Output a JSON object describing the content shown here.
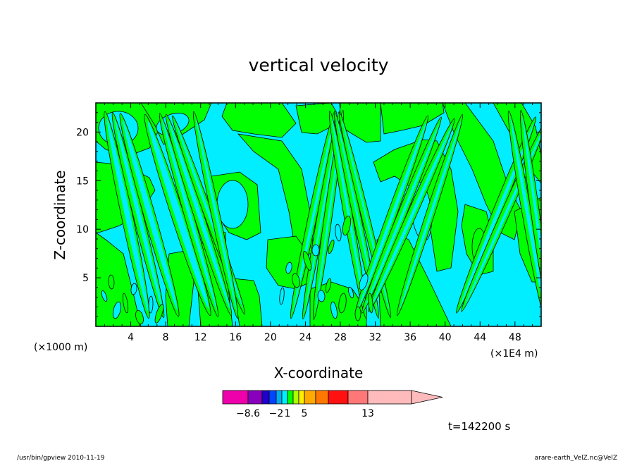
{
  "chart_data": {
    "type": "heatmap",
    "title": "vertical velocity",
    "xlabel": "X-coordinate",
    "ylabel": "Z-coordinate",
    "x_unit_left": "(×1000 m)",
    "x_unit_right": "(×1E4 m)",
    "xlim": [
      0,
      51
    ],
    "ylim": [
      0,
      23
    ],
    "x_ticks": [
      4,
      8,
      12,
      16,
      20,
      24,
      28,
      32,
      36,
      40,
      44,
      48
    ],
    "y_ticks": [
      5,
      10,
      15,
      20
    ],
    "fill_levels": [
      {
        "color": "#ee00aa"
      },
      {
        "color": "#8800bb"
      },
      {
        "color": "#2200cc"
      },
      {
        "color": "#0044ff"
      },
      {
        "color": "#00aaee"
      },
      {
        "color": "#00eeff"
      },
      {
        "color": "#00ff00"
      },
      {
        "color": "#aaff00"
      },
      {
        "color": "#ffee00"
      },
      {
        "color": "#ffaa00"
      },
      {
        "color": "#ff7700"
      },
      {
        "color": "#ff1111"
      },
      {
        "color": "#ff7777"
      },
      {
        "color": "#ffbbbb"
      }
    ],
    "colorbar_labels": [
      {
        "text": "−8.6",
        "index": 1
      },
      {
        "text": "−2",
        "index": 4
      },
      {
        "text": "1",
        "index": 6
      },
      {
        "text": "5",
        "index": 9
      },
      {
        "text": "13",
        "index": 13
      }
    ],
    "colors": {
      "negative_fill": "#00eeff",
      "positive_fill": "#00ff00",
      "outline": "#000000"
    }
  },
  "time_label": "t=142200 s",
  "footer": {
    "left": "/usr/bin/gpview   2010-11-19",
    "right": "arare-earth_VelZ.nc@VelZ"
  }
}
